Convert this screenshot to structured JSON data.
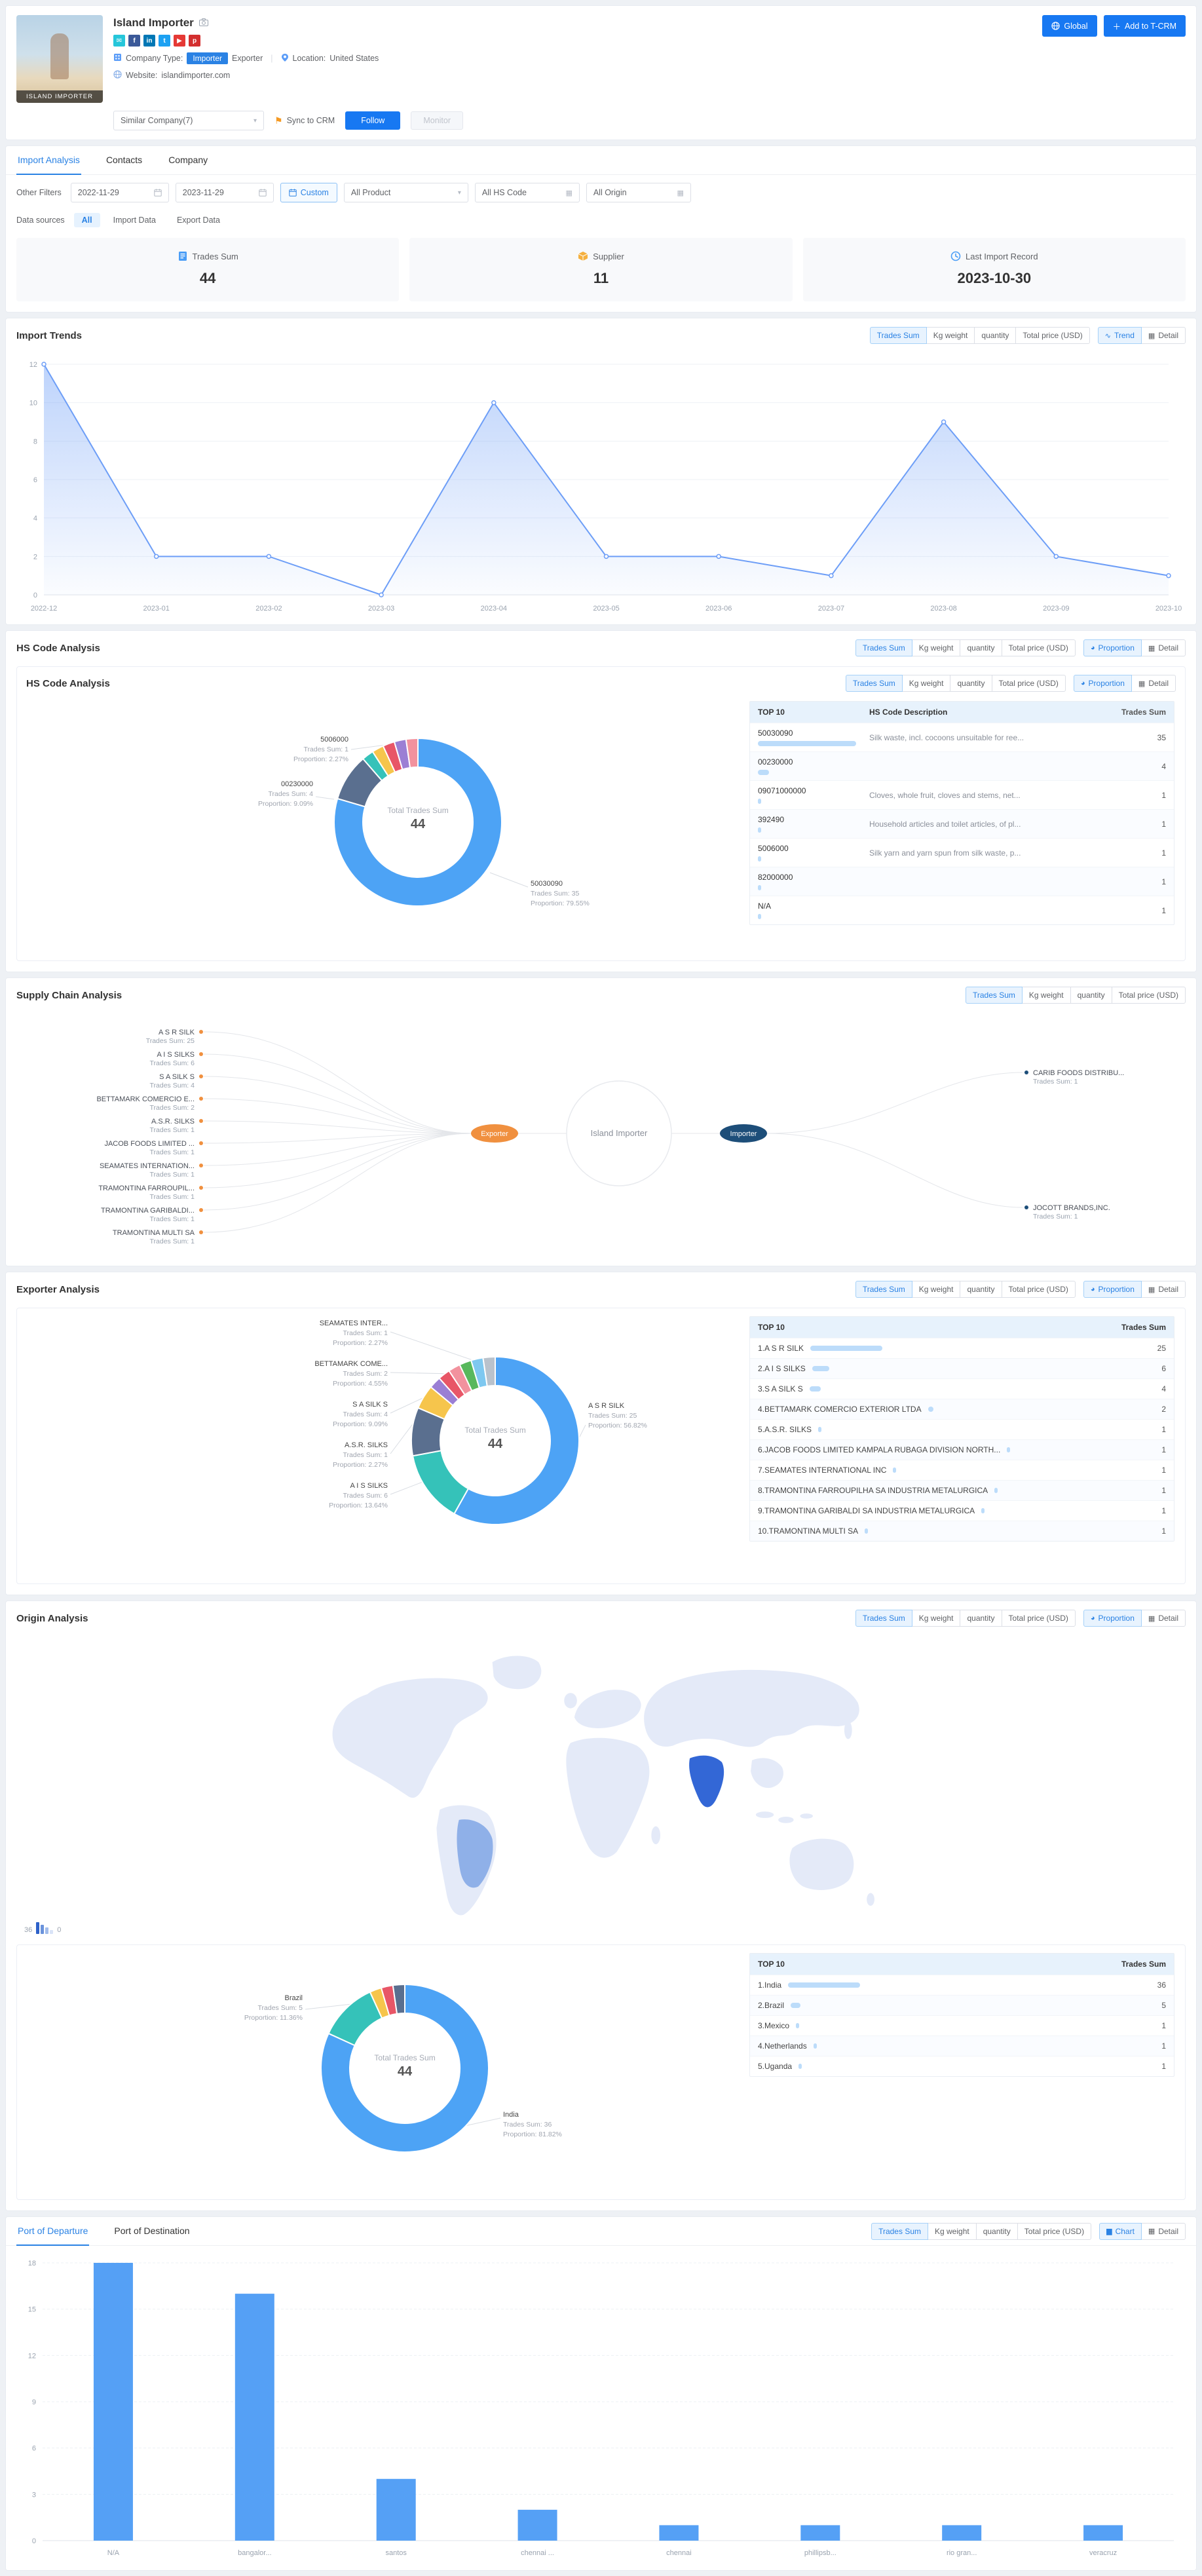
{
  "header": {
    "company_name": "Island Importer",
    "photo_caption": "island importer",
    "social_icons": [
      {
        "name": "email",
        "glyph": "✉",
        "color": "#26c6da"
      },
      {
        "name": "facebook",
        "glyph": "f",
        "color": "#3b5998"
      },
      {
        "name": "linkedin",
        "glyph": "in",
        "color": "#0077b5"
      },
      {
        "name": "twitter",
        "glyph": "t",
        "color": "#1da1f2"
      },
      {
        "name": "youtube",
        "glyph": "▶",
        "color": "#e53935"
      },
      {
        "name": "pinterest",
        "glyph": "p",
        "color": "#d32f2f"
      }
    ],
    "company_type_label": "Company Type:",
    "type_importer": "Importer",
    "type_exporter": "Exporter",
    "divider": "|",
    "location_label": "Location:",
    "location_value": "United States",
    "website_label": "Website:",
    "website_value": "islandimporter.com",
    "global_button": "Global",
    "add_crm_button": "Add to T-CRM",
    "similar_company_select": "Similar Company(7)",
    "sync_crm_label": "Sync to CRM",
    "follow_button": "Follow",
    "monitor_button": "Monitor"
  },
  "tabs": [
    "Import Analysis",
    "Contacts",
    "Company"
  ],
  "filters": {
    "other_filters_label": "Other Filters",
    "date_from": "2022-11-29",
    "date_to": "2023-11-29",
    "custom_button": "Custom",
    "product_select": "All Product",
    "hs_code_select": "All HS Code",
    "origin_select": "All Origin",
    "data_sources_label": "Data sources",
    "data_sources": [
      "All",
      "Import Data",
      "Export Data"
    ]
  },
  "stats": [
    {
      "label": "Trades Sum",
      "value": "44"
    },
    {
      "label": "Supplier",
      "value": "11"
    },
    {
      "label": "Last Import Record",
      "value": "2023-10-30"
    }
  ],
  "metric_buttons": [
    "Trades Sum",
    "Kg weight",
    "quantity",
    "Total price (USD)"
  ],
  "import_trends": {
    "title": "Import Trends",
    "toggles": [
      {
        "label": "Trend",
        "icon": "∿"
      },
      {
        "label": "Detail",
        "icon": "▦"
      }
    ],
    "chart_data": {
      "type": "area",
      "x": [
        "2022-12",
        "2023-01",
        "2023-02",
        "2023-03",
        "2023-04",
        "2023-05",
        "2023-06",
        "2023-07",
        "2023-08",
        "2023-09",
        "2023-10"
      ],
      "values": [
        12,
        2,
        2,
        0,
        10,
        2,
        2,
        1,
        9,
        2,
        1
      ],
      "y_ticks": [
        0,
        2,
        4,
        6,
        8,
        10,
        12
      ],
      "line_color": "#6d9ef7"
    }
  },
  "hs_code": {
    "title": "HS Code Analysis",
    "toggles": [
      {
        "label": "Proportion",
        "icon": "◕"
      },
      {
        "label": "Detail",
        "icon": "▦"
      }
    ],
    "donut": {
      "center_label": "Total Trades Sum",
      "center_value": "44",
      "segments": [
        {
          "name": "50030090",
          "value": 35,
          "color": "#4da3f5"
        },
        {
          "name": "00230000",
          "value": 4,
          "color": "#5a6f8f"
        },
        {
          "name": "09071000000",
          "value": 1,
          "color": "#35c2b9"
        },
        {
          "name": "392490",
          "value": 1,
          "color": "#f6c54c"
        },
        {
          "name": "5006000",
          "value": 1,
          "color": "#e85667"
        },
        {
          "name": "82000000",
          "value": 1,
          "color": "#9b7fd4"
        },
        {
          "name": "N/A",
          "value": 1,
          "color": "#f2929e"
        }
      ],
      "callouts": [
        {
          "name": "5006000",
          "line1": "Trades Sum: 1",
          "line2": "Proportion: 2.27%"
        },
        {
          "name": "00230000",
          "line1": "Trades Sum: 4",
          "line2": "Proportion: 9.09%"
        },
        {
          "name": "50030090",
          "line1": "Trades Sum: 35",
          "line2": "Proportion: 79.55%"
        }
      ]
    },
    "table": {
      "col1": "TOP 10",
      "col2": "HS Code Description",
      "col3": "Trades Sum",
      "rows": [
        {
          "code": "50030090",
          "desc": "Silk waste, incl. cocoons unsuitable for ree...",
          "value": 35
        },
        {
          "code": "00230000",
          "desc": "",
          "value": 4
        },
        {
          "code": "09071000000",
          "desc": "Cloves, whole fruit, cloves and stems, net...",
          "value": 1
        },
        {
          "code": "392490",
          "desc": "Household articles and toilet articles, of pl...",
          "value": 1
        },
        {
          "code": "5006000",
          "desc": "Silk yarn and yarn spun from silk waste, p...",
          "value": 1
        },
        {
          "code": "82000000",
          "desc": "",
          "value": 1
        },
        {
          "code": "N/A",
          "desc": "",
          "value": 1
        }
      ]
    }
  },
  "supply_chain": {
    "title": "Supply Chain Analysis",
    "center_company": "Island Importer",
    "exporter_label": "Exporter",
    "importer_label": "Importer",
    "suppliers": [
      {
        "name": "A S R SILK",
        "line": "Trades Sum: 25"
      },
      {
        "name": "A I S SILKS",
        "line": "Trades Sum: 6"
      },
      {
        "name": "S A SILK S",
        "line": "Trades Sum: 4"
      },
      {
        "name": "BETTAMARK COMERCIO E...",
        "line": "Trades Sum: 2"
      },
      {
        "name": "A.S.R. SILKS",
        "line": "Trades Sum: 1"
      },
      {
        "name": "JACOB FOODS LIMITED ...",
        "line": "Trades Sum: 1"
      },
      {
        "name": "SEAMATES INTERNATION...",
        "line": "Trades Sum: 1"
      },
      {
        "name": "TRAMONTINA FARROUPIL...",
        "line": "Trades Sum: 1"
      },
      {
        "name": "TRAMONTINA GARIBALDI...",
        "line": "Trades Sum: 1"
      },
      {
        "name": "TRAMONTINA MULTI SA",
        "line": "Trades Sum: 1"
      }
    ],
    "customers": [
      {
        "name": "CARIB FOODS DISTRIBU...",
        "line": "Trades Sum: 1"
      },
      {
        "name": "JOCOTT BRANDS,INC.",
        "line": "Trades Sum: 1"
      }
    ]
  },
  "exporter": {
    "title": "Exporter Analysis",
    "toggles": [
      {
        "label": "Proportion",
        "icon": "◕"
      },
      {
        "label": "Detail",
        "icon": "▦"
      }
    ],
    "donut": {
      "center_label": "Total Trades Sum",
      "center_value": "44",
      "segments": [
        {
          "name": "A S R SILK",
          "value": 25,
          "color": "#4da3f5"
        },
        {
          "name": "A I S SILKS",
          "value": 6,
          "color": "#35c2b9"
        },
        {
          "name": "S A SILK S",
          "value": 4,
          "color": "#5a6f8f"
        },
        {
          "name": "BETTAMARK COMERCIO EXTERIOR LTDA",
          "value": 2,
          "color": "#f6c54c"
        },
        {
          "name": "A.S.R. SILKS",
          "value": 1,
          "color": "#9b7fd4"
        },
        {
          "name": "JACOB FOODS LIMITED",
          "value": 1,
          "color": "#e85667"
        },
        {
          "name": "SEAMATES INTERNATIONAL INC",
          "value": 1,
          "color": "#f2929e"
        },
        {
          "name": "TRAMONTINA FARROUPILHA",
          "value": 1,
          "color": "#58b85c"
        },
        {
          "name": "TRAMONTINA GARIBALDI",
          "value": 1,
          "color": "#7ec8f0"
        },
        {
          "name": "TRAMONTINA MULTI SA",
          "value": 1,
          "color": "#b9c2cc"
        }
      ],
      "callouts_left": [
        {
          "name": "SEAMATES INTER...",
          "line1": "Trades Sum: 1",
          "line2": "Proportion: 2.27%"
        },
        {
          "name": "BETTAMARK COME...",
          "line1": "Trades Sum: 2",
          "line2": "Proportion: 4.55%"
        },
        {
          "name": "S A SILK S",
          "line1": "Trades Sum: 4",
          "line2": "Proportion: 9.09%"
        },
        {
          "name": "A.S.R. SILKS",
          "line1": "Trades Sum: 1",
          "line2": "Proportion: 2.27%"
        },
        {
          "name": "A I S SILKS",
          "line1": "Trades Sum: 6",
          "line2": "Proportion: 13.64%"
        }
      ],
      "callout_right": {
        "name": "A S R SILK",
        "line1": "Trades Sum: 25",
        "line2": "Proportion: 56.82%"
      }
    },
    "table": {
      "col1": "TOP 10",
      "col2": "Trades Sum",
      "rows": [
        {
          "name": "1.A S R SILK",
          "value": 25
        },
        {
          "name": "2.A I S SILKS",
          "value": 6
        },
        {
          "name": "3.S A SILK S",
          "value": 4
        },
        {
          "name": "4.BETTAMARK COMERCIO EXTERIOR LTDA",
          "value": 2
        },
        {
          "name": "5.A.S.R. SILKS",
          "value": 1
        },
        {
          "name": "6.JACOB FOODS LIMITED KAMPALA RUBAGA DIVISION NORTH...",
          "value": 1
        },
        {
          "name": "7.SEAMATES INTERNATIONAL INC",
          "value": 1
        },
        {
          "name": "8.TRAMONTINA FARROUPILHA SA INDUSTRIA METALURGICA",
          "value": 1
        },
        {
          "name": "9.TRAMONTINA GARIBALDI SA INDUSTRIA METALURGICA",
          "value": 1
        },
        {
          "name": "10.TRAMONTINA MULTI SA",
          "value": 1
        }
      ]
    }
  },
  "origin": {
    "title": "Origin Analysis",
    "toggles": [
      {
        "label": "Proportion",
        "icon": "◕"
      },
      {
        "label": "Detail",
        "icon": "▦"
      }
    ],
    "map": {
      "legend_max": "36",
      "legend_min": "0",
      "land_color": "#e4eaf8",
      "brazil_color": "#8fb0e8",
      "india_color": "#3367d6"
    },
    "donut": {
      "center_label": "Total Trades Sum",
      "center_value": "44",
      "segments": [
        {
          "name": "India",
          "value": 36,
          "color": "#4da3f5"
        },
        {
          "name": "Brazil",
          "value": 5,
          "color": "#35c2b9"
        },
        {
          "name": "Mexico",
          "value": 1,
          "color": "#f6c54c"
        },
        {
          "name": "Netherlands",
          "value": 1,
          "color": "#e85667"
        },
        {
          "name": "Uganda",
          "value": 1,
          "color": "#5a6f8f"
        }
      ],
      "callouts": [
        {
          "name": "Brazil",
          "line1": "Trades Sum: 5",
          "line2": "Proportion: 11.36%"
        },
        {
          "name": "India",
          "line1": "Trades Sum: 36",
          "line2": "Proportion: 81.82%"
        }
      ]
    },
    "table": {
      "col1": "TOP 10",
      "col2": "Trades Sum",
      "rows": [
        {
          "name": "1.India",
          "value": 36
        },
        {
          "name": "2.Brazil",
          "value": 5
        },
        {
          "name": "3.Mexico",
          "value": 1
        },
        {
          "name": "4.Netherlands",
          "value": 1
        },
        {
          "name": "5.Uganda",
          "value": 1
        }
      ]
    }
  },
  "ports": {
    "tabs": [
      "Port of Departure",
      "Port of Destination"
    ],
    "toggles": [
      {
        "label": "Chart",
        "icon": "▆"
      },
      {
        "label": "Detail",
        "icon": "▦"
      }
    ],
    "chart_data": {
      "type": "bar",
      "categories": [
        "N/A",
        "bangalor...",
        "santos",
        "chennai ...",
        "chennai",
        "phillipsb...",
        "rio gran...",
        "veracruz"
      ],
      "values": [
        18,
        16,
        4,
        2,
        1,
        1,
        1,
        1
      ],
      "y_ticks": [
        0,
        3,
        6,
        9,
        12,
        15,
        18
      ],
      "bar_color": "#55a0f5"
    }
  }
}
